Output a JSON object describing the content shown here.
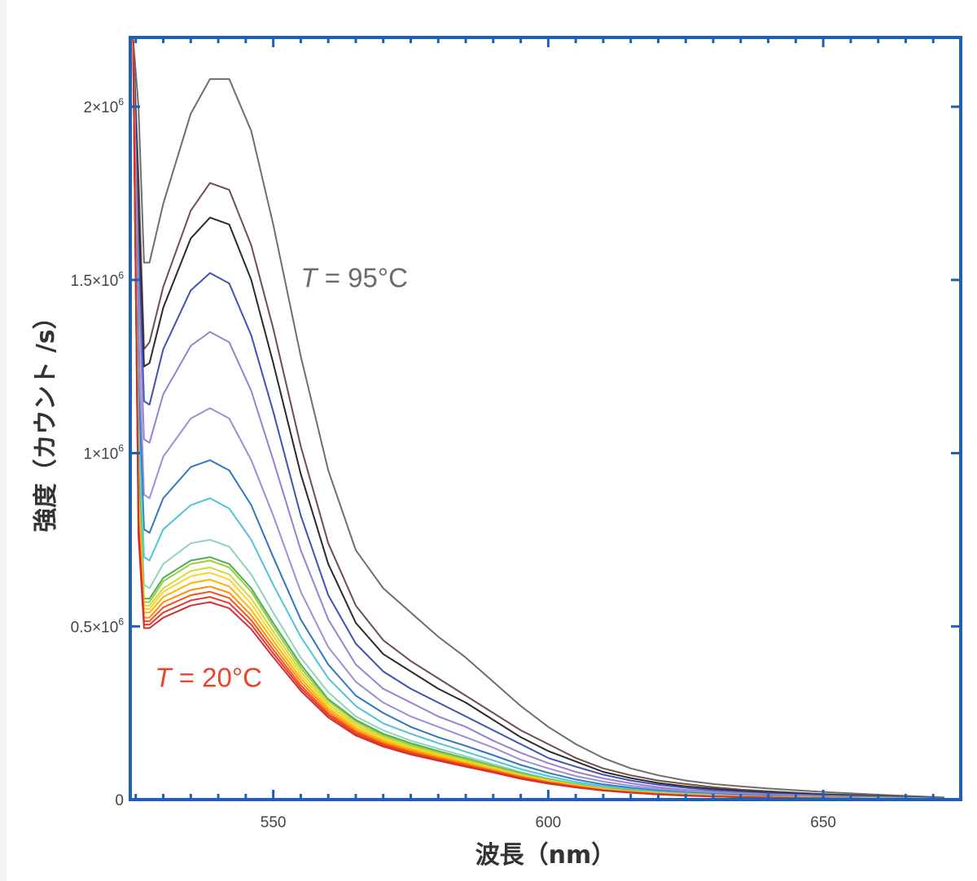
{
  "chart_data": {
    "type": "line",
    "xlabel": "波長（nm）",
    "ylabel": "強度（カウント /s）",
    "xlim": [
      524,
      675
    ],
    "ylim": [
      0,
      2.2
    ],
    "x_ticks": [
      {
        "value": 550,
        "label": "550"
      },
      {
        "value": 600,
        "label": "600"
      },
      {
        "value": 650,
        "label": "650"
      }
    ],
    "y_ticks": [
      {
        "value": 0,
        "mantissa": "0",
        "exp": ""
      },
      {
        "value": 0.5,
        "mantissa": "0.5×10",
        "exp": "6"
      },
      {
        "value": 1.0,
        "mantissa": "1×10",
        "exp": "6"
      },
      {
        "value": 1.5,
        "mantissa": "1.5×10",
        "exp": "6"
      },
      {
        "value": 2.0,
        "mantissa": "2×10",
        "exp": "6"
      }
    ],
    "y_unit_multiplier": 1000000,
    "x_points": [
      524.5,
      525.5,
      526.5,
      527.5,
      530,
      535,
      538.5,
      542,
      546,
      550,
      555,
      560,
      565,
      570,
      575,
      580,
      585,
      590,
      595,
      600,
      605,
      610,
      615,
      620,
      625,
      630,
      635,
      640,
      645,
      650,
      660,
      672
    ],
    "series_curves": [
      {
        "color": "#6e6e6e",
        "values": [
          2.2,
          2.0,
          1.55,
          1.55,
          1.72,
          1.98,
          2.08,
          2.08,
          1.93,
          1.66,
          1.28,
          0.95,
          0.72,
          0.61,
          0.54,
          0.47,
          0.41,
          0.34,
          0.27,
          0.21,
          0.16,
          0.12,
          0.09,
          0.07,
          0.055,
          0.045,
          0.038,
          0.032,
          0.027,
          0.022,
          0.014,
          0.006
        ]
      },
      {
        "color": "#6e4f49",
        "values": [
          2.2,
          1.8,
          1.3,
          1.32,
          1.48,
          1.7,
          1.78,
          1.76,
          1.6,
          1.36,
          1.02,
          0.74,
          0.56,
          0.46,
          0.4,
          0.35,
          0.3,
          0.25,
          0.2,
          0.16,
          0.12,
          0.09,
          0.07,
          0.055,
          0.045,
          0.036,
          0.029,
          0.024,
          0.02,
          0.016,
          0.011,
          0.005
        ]
      },
      {
        "color": "#2b2b2b",
        "values": [
          2.2,
          1.7,
          1.25,
          1.26,
          1.42,
          1.62,
          1.68,
          1.66,
          1.5,
          1.26,
          0.94,
          0.68,
          0.51,
          0.42,
          0.37,
          0.32,
          0.28,
          0.23,
          0.18,
          0.14,
          0.11,
          0.08,
          0.062,
          0.048,
          0.038,
          0.031,
          0.025,
          0.021,
          0.017,
          0.014,
          0.009,
          0.004
        ]
      },
      {
        "color": "#3f51b5",
        "values": [
          2.2,
          1.6,
          1.15,
          1.14,
          1.3,
          1.47,
          1.52,
          1.49,
          1.34,
          1.12,
          0.82,
          0.59,
          0.45,
          0.37,
          0.32,
          0.28,
          0.24,
          0.2,
          0.16,
          0.12,
          0.095,
          0.072,
          0.055,
          0.043,
          0.034,
          0.027,
          0.022,
          0.018,
          0.015,
          0.012,
          0.008,
          0.004
        ]
      },
      {
        "color": "#9b7fd0",
        "values": [
          2.2,
          1.5,
          1.04,
          1.03,
          1.17,
          1.31,
          1.35,
          1.32,
          1.18,
          0.98,
          0.72,
          0.52,
          0.39,
          0.32,
          0.28,
          0.24,
          0.21,
          0.17,
          0.135,
          0.105,
          0.08,
          0.061,
          0.047,
          0.036,
          0.028,
          0.023,
          0.019,
          0.015,
          0.013,
          0.01,
          0.007,
          0.003
        ]
      },
      {
        "color": "#9c8fd6",
        "values": [
          2.2,
          1.35,
          0.88,
          0.87,
          0.99,
          1.1,
          1.13,
          1.1,
          0.98,
          0.82,
          0.6,
          0.44,
          0.34,
          0.28,
          0.24,
          0.21,
          0.18,
          0.15,
          0.115,
          0.09,
          0.068,
          0.052,
          0.04,
          0.031,
          0.024,
          0.019,
          0.016,
          0.013,
          0.011,
          0.009,
          0.006,
          0.003
        ]
      },
      {
        "color": "#2f78bd",
        "values": [
          2.2,
          1.2,
          0.78,
          0.77,
          0.87,
          0.96,
          0.98,
          0.95,
          0.85,
          0.7,
          0.52,
          0.39,
          0.3,
          0.25,
          0.21,
          0.18,
          0.155,
          0.128,
          0.1,
          0.077,
          0.058,
          0.044,
          0.034,
          0.026,
          0.02,
          0.016,
          0.013,
          0.011,
          0.009,
          0.007,
          0.005,
          0.002
        ]
      },
      {
        "color": "#4fc3d9",
        "values": [
          2.2,
          1.1,
          0.7,
          0.69,
          0.78,
          0.85,
          0.87,
          0.84,
          0.75,
          0.62,
          0.47,
          0.35,
          0.27,
          0.22,
          0.19,
          0.163,
          0.138,
          0.113,
          0.088,
          0.068,
          0.051,
          0.039,
          0.03,
          0.023,
          0.018,
          0.014,
          0.011,
          0.009,
          0.008,
          0.006,
          0.004,
          0.002
        ]
      },
      {
        "color": "#8fd4b8",
        "values": [
          2.2,
          1.0,
          0.62,
          0.61,
          0.68,
          0.74,
          0.75,
          0.73,
          0.65,
          0.54,
          0.41,
          0.31,
          0.24,
          0.2,
          0.17,
          0.147,
          0.125,
          0.102,
          0.08,
          0.061,
          0.046,
          0.035,
          0.027,
          0.021,
          0.016,
          0.013,
          0.01,
          0.008,
          0.007,
          0.005,
          0.004,
          0.002
        ]
      },
      {
        "color": "#4caf50",
        "values": [
          2.2,
          0.95,
          0.58,
          0.58,
          0.64,
          0.69,
          0.7,
          0.68,
          0.61,
          0.51,
          0.39,
          0.29,
          0.23,
          0.19,
          0.163,
          0.14,
          0.119,
          0.097,
          0.076,
          0.058,
          0.044,
          0.033,
          0.026,
          0.02,
          0.015,
          0.012,
          0.01,
          0.008,
          0.006,
          0.005,
          0.003,
          0.002
        ]
      },
      {
        "color": "#9ccc3a",
        "values": [
          2.2,
          0.9,
          0.57,
          0.57,
          0.63,
          0.68,
          0.69,
          0.67,
          0.6,
          0.5,
          0.38,
          0.285,
          0.225,
          0.185,
          0.158,
          0.136,
          0.116,
          0.095,
          0.074,
          0.057,
          0.043,
          0.032,
          0.025,
          0.019,
          0.015,
          0.012,
          0.009,
          0.007,
          0.006,
          0.005,
          0.003,
          0.002
        ]
      },
      {
        "color": "#cddc39",
        "values": [
          2.2,
          0.88,
          0.56,
          0.56,
          0.61,
          0.66,
          0.67,
          0.65,
          0.58,
          0.485,
          0.37,
          0.277,
          0.218,
          0.18,
          0.153,
          0.132,
          0.112,
          0.092,
          0.072,
          0.055,
          0.042,
          0.031,
          0.024,
          0.019,
          0.014,
          0.011,
          0.009,
          0.007,
          0.006,
          0.005,
          0.003,
          0.002
        ]
      },
      {
        "color": "#ffd12a",
        "values": [
          2.2,
          0.86,
          0.55,
          0.55,
          0.6,
          0.645,
          0.655,
          0.635,
          0.565,
          0.472,
          0.36,
          0.27,
          0.212,
          0.175,
          0.149,
          0.128,
          0.109,
          0.089,
          0.07,
          0.054,
          0.041,
          0.03,
          0.023,
          0.018,
          0.014,
          0.011,
          0.009,
          0.007,
          0.006,
          0.004,
          0.003,
          0.001
        ]
      },
      {
        "color": "#ffb300",
        "values": [
          2.2,
          0.84,
          0.54,
          0.54,
          0.585,
          0.625,
          0.635,
          0.615,
          0.548,
          0.458,
          0.35,
          0.263,
          0.206,
          0.17,
          0.145,
          0.125,
          0.106,
          0.087,
          0.068,
          0.052,
          0.04,
          0.029,
          0.023,
          0.017,
          0.013,
          0.01,
          0.008,
          0.007,
          0.005,
          0.004,
          0.003,
          0.001
        ]
      },
      {
        "color": "#ff8f00",
        "values": [
          2.2,
          0.82,
          0.525,
          0.525,
          0.57,
          0.605,
          0.615,
          0.597,
          0.532,
          0.445,
          0.34,
          0.256,
          0.2,
          0.165,
          0.141,
          0.121,
          0.103,
          0.084,
          0.066,
          0.051,
          0.039,
          0.028,
          0.022,
          0.017,
          0.013,
          0.01,
          0.008,
          0.006,
          0.005,
          0.004,
          0.002,
          0.001
        ]
      },
      {
        "color": "#f4511e",
        "values": [
          2.2,
          0.8,
          0.515,
          0.515,
          0.555,
          0.59,
          0.6,
          0.582,
          0.518,
          0.433,
          0.33,
          0.249,
          0.195,
          0.161,
          0.137,
          0.118,
          0.1,
          0.082,
          0.064,
          0.049,
          0.037,
          0.027,
          0.021,
          0.016,
          0.012,
          0.009,
          0.007,
          0.006,
          0.005,
          0.004,
          0.002,
          0.001
        ]
      },
      {
        "color": "#e53935",
        "values": [
          2.2,
          0.78,
          0.505,
          0.505,
          0.54,
          0.575,
          0.585,
          0.567,
          0.505,
          0.422,
          0.322,
          0.243,
          0.19,
          0.157,
          0.133,
          0.115,
          0.097,
          0.08,
          0.062,
          0.048,
          0.036,
          0.026,
          0.02,
          0.015,
          0.012,
          0.009,
          0.007,
          0.006,
          0.004,
          0.003,
          0.002,
          0.001
        ]
      },
      {
        "color": "#d32f2f",
        "values": [
          2.2,
          0.76,
          0.495,
          0.495,
          0.525,
          0.56,
          0.57,
          0.552,
          0.492,
          0.411,
          0.314,
          0.237,
          0.185,
          0.153,
          0.13,
          0.112,
          0.095,
          0.078,
          0.06,
          0.046,
          0.035,
          0.026,
          0.02,
          0.015,
          0.011,
          0.009,
          0.007,
          0.005,
          0.004,
          0.003,
          0.002,
          0.001
        ]
      }
    ],
    "annotations": [
      {
        "text_italic": "T",
        "text_rest": " = 95°C",
        "color": "#6b6b6b",
        "x": 555,
        "y": 1.48
      },
      {
        "text_italic": "T",
        "text_rest": " = 20°C",
        "color": "#e8452c",
        "x": 528.5,
        "y": 0.325
      }
    ],
    "grid": false,
    "frame_color": "#1f5fb4"
  }
}
